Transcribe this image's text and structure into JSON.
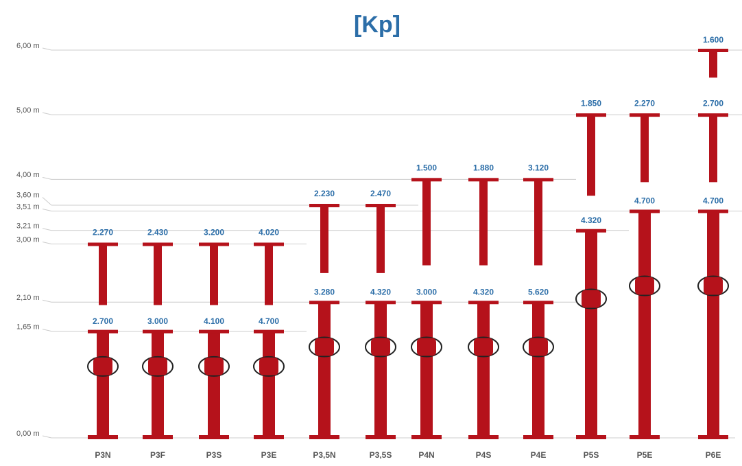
{
  "chart_data": {
    "type": "prop",
    "title": "[Kp]",
    "categories": [
      "P3N",
      "P3F",
      "P3S",
      "P3E",
      "P3,5N",
      "P3,5S",
      "P4N",
      "P4S",
      "P4E",
      "P5S",
      "P5E",
      "P6E"
    ],
    "min_height": [
      1.65,
      1.65,
      1.65,
      1.65,
      2.1,
      2.1,
      2.1,
      2.1,
      2.1,
      3.21,
      3.51,
      3.51
    ],
    "max_height": [
      3.0,
      3.0,
      3.0,
      3.0,
      3.6,
      3.6,
      4.0,
      4.0,
      4.0,
      5.0,
      5.0,
      5.0
    ],
    "extension_height": [
      null,
      null,
      null,
      null,
      null,
      null,
      null,
      null,
      null,
      null,
      null,
      6.0
    ],
    "load_at_max": {
      "values": [
        2270,
        2430,
        3200,
        4020,
        2230,
        2470,
        1500,
        1880,
        3120,
        1850,
        2270,
        2700
      ],
      "value_labels": [
        "2.270",
        "2.430",
        "3.200",
        "4.020",
        "2.230",
        "2.470",
        "1.500",
        "1.880",
        "3.120",
        "1.850",
        "2.270",
        "2.700"
      ]
    },
    "load_at_min": {
      "values": [
        2700,
        3000,
        4100,
        4700,
        3280,
        4320,
        3000,
        4320,
        5620,
        4320,
        4700,
        4700
      ],
      "value_labels": [
        "2.700",
        "3.000",
        "4.100",
        "4.700",
        "3.280",
        "4.320",
        "3.000",
        "4.320",
        "5.620",
        "4.320",
        "4.700",
        "4.700"
      ]
    },
    "load_at_extension": {
      "values": [
        null,
        null,
        null,
        null,
        null,
        null,
        null,
        null,
        null,
        null,
        null,
        1600
      ],
      "value_labels": [
        null,
        null,
        null,
        null,
        null,
        null,
        null,
        null,
        null,
        null,
        null,
        "1.600"
      ]
    },
    "ylim": [
      0,
      6
    ],
    "yticks": [
      {
        "value": 0,
        "label": "0,00 m"
      },
      {
        "value": 1.65,
        "label": "1,65 m"
      },
      {
        "value": 2.1,
        "label": "2,10 m"
      },
      {
        "value": 3,
        "label": "3,00 m"
      },
      {
        "value": 3.21,
        "label": "3,21 m"
      },
      {
        "value": 3.51,
        "label": "3,51 m"
      },
      {
        "value": 3.6,
        "label": "3,60 m"
      },
      {
        "value": 4,
        "label": "4,00 m"
      },
      {
        "value": 5,
        "label": "5,00 m"
      },
      {
        "value": 6,
        "label": "6,00 m"
      }
    ],
    "color": "#b5121b",
    "label_color": "#2c6ea8"
  }
}
